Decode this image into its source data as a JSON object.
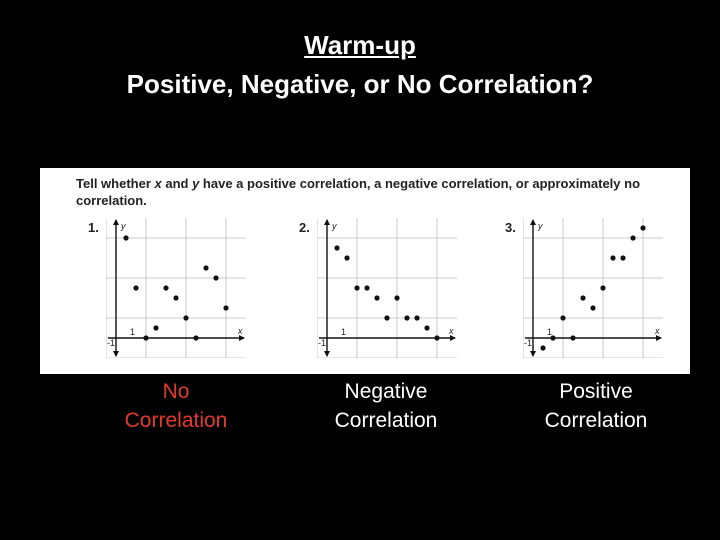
{
  "header": {
    "title": "Warm-up",
    "subtitle": "Positive, Negative, or No Correlation?"
  },
  "panel": {
    "instruction_parts": [
      {
        "text": "Tell whether ",
        "italic": false
      },
      {
        "text": "x",
        "italic": true
      },
      {
        "text": " and ",
        "italic": false
      },
      {
        "text": "y",
        "italic": true
      },
      {
        "text": " have a positive correlation, a negative correlation, or approximately no correlation.",
        "italic": false
      }
    ]
  },
  "colors": {
    "background": "#000000",
    "panel": "#ffffff",
    "title": "#ffffff",
    "answer_no": "#e23b2e",
    "answer_other": "#ffffff",
    "grid": "#bdbdbd",
    "point": "#111111"
  },
  "answers": [
    {
      "label": "No\nCorrelation"
    },
    {
      "label": "Negative\nCorrelation"
    },
    {
      "label": "Positive\nCorrelation"
    }
  ],
  "chart_data": [
    {
      "type": "scatter",
      "number": "1.",
      "xlabel": "x",
      "ylabel": "y",
      "x_tick": "1",
      "y_tick": "-1",
      "xlim": [
        -1,
        13
      ],
      "ylim": [
        -2,
        12
      ],
      "points": [
        [
          1,
          10
        ],
        [
          2,
          5
        ],
        [
          3,
          0
        ],
        [
          4,
          1
        ],
        [
          5,
          5
        ],
        [
          6,
          4
        ],
        [
          7,
          2
        ],
        [
          8,
          0
        ],
        [
          9,
          7
        ],
        [
          10,
          6
        ],
        [
          11,
          3
        ]
      ]
    },
    {
      "type": "scatter",
      "number": "2.",
      "xlabel": "x",
      "ylabel": "y",
      "x_tick": "1",
      "y_tick": "-1",
      "xlim": [
        -1,
        13
      ],
      "ylim": [
        -2,
        12
      ],
      "points": [
        [
          1,
          9
        ],
        [
          2,
          8
        ],
        [
          3,
          5
        ],
        [
          4,
          5
        ],
        [
          5,
          4
        ],
        [
          6,
          2
        ],
        [
          7,
          4
        ],
        [
          8,
          2
        ],
        [
          9,
          2
        ],
        [
          10,
          1
        ],
        [
          11,
          0
        ]
      ]
    },
    {
      "type": "scatter",
      "number": "3.",
      "xlabel": "x",
      "ylabel": "y",
      "x_tick": "1",
      "y_tick": "-1",
      "xlim": [
        -1,
        13
      ],
      "ylim": [
        -2,
        12
      ],
      "points": [
        [
          1,
          -1
        ],
        [
          2,
          0
        ],
        [
          3,
          2
        ],
        [
          4,
          0
        ],
        [
          5,
          4
        ],
        [
          6,
          3
        ],
        [
          7,
          5
        ],
        [
          8,
          8
        ],
        [
          9,
          8
        ],
        [
          10,
          10
        ],
        [
          11,
          11
        ]
      ]
    }
  ]
}
